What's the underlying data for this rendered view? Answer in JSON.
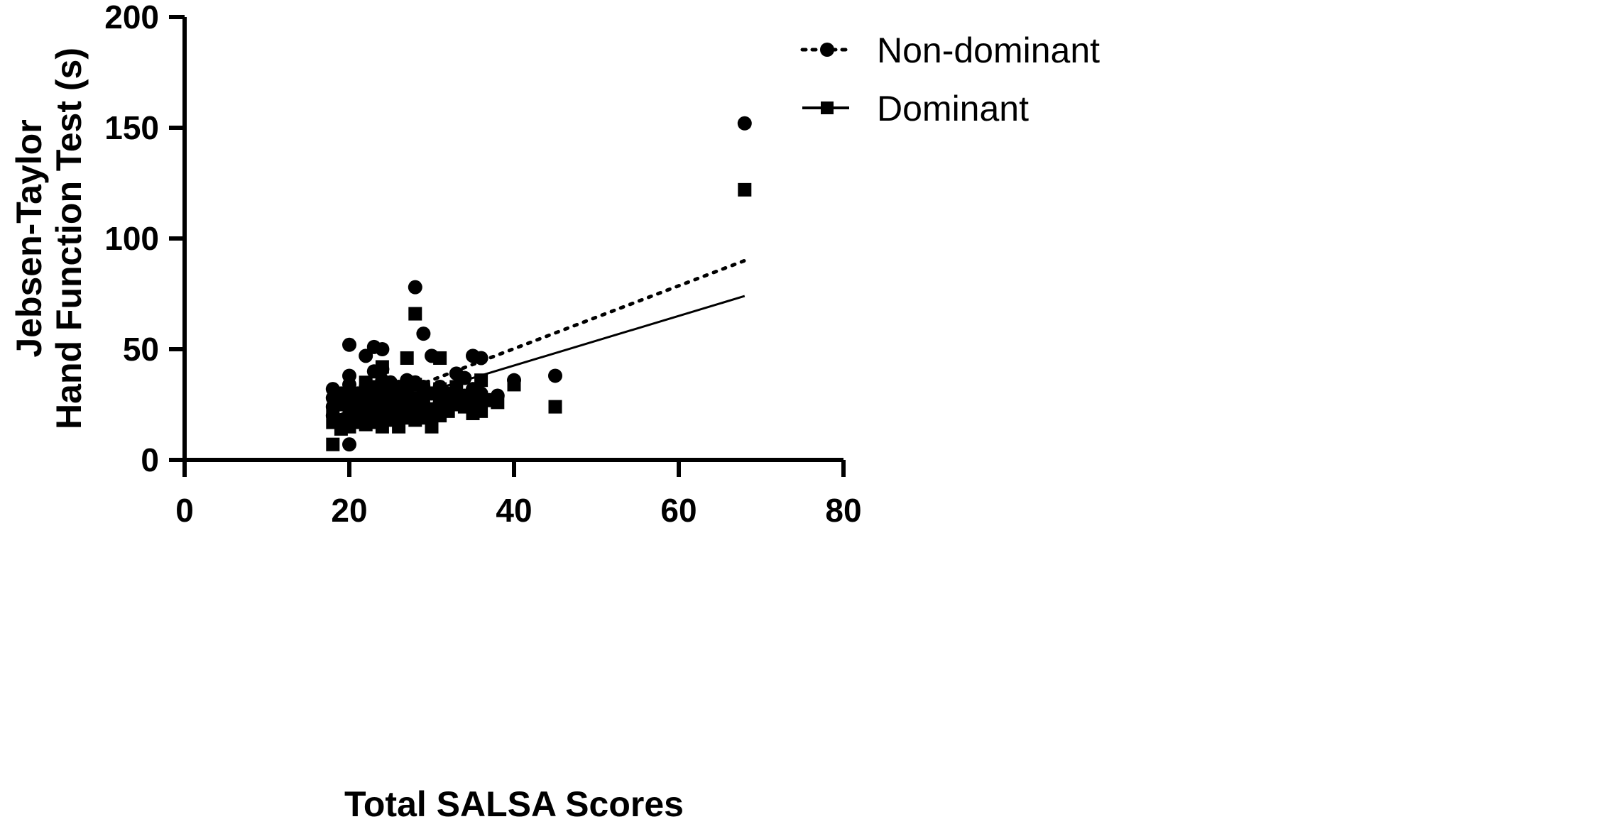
{
  "chart_data": {
    "type": "scatter",
    "xlabel": "Total SALSA Scores",
    "ylabel_lines": [
      "Jebsen-Taylor",
      "Hand Function Test (s)"
    ],
    "xlim": [
      0,
      80
    ],
    "ylim": [
      0,
      200
    ],
    "x_ticks": [
      "0",
      "20",
      "40",
      "60",
      "80"
    ],
    "y_ticks": [
      "0",
      "50",
      "100",
      "150",
      "200"
    ],
    "grid": false,
    "legend_position": "top-right",
    "series": [
      {
        "name": "Non-dominant",
        "marker": "circle",
        "trend_line": "dotted",
        "trend": [
          [
            18,
            19
          ],
          [
            68,
            90
          ]
        ],
        "points": [
          [
            18,
            20
          ],
          [
            18,
            24
          ],
          [
            18,
            28
          ],
          [
            18,
            32
          ],
          [
            19,
            18
          ],
          [
            19,
            26
          ],
          [
            19,
            30
          ],
          [
            20,
            52
          ],
          [
            20,
            38
          ],
          [
            20,
            34
          ],
          [
            20,
            29
          ],
          [
            20,
            23
          ],
          [
            20,
            16
          ],
          [
            20,
            7
          ],
          [
            21,
            30
          ],
          [
            21,
            22
          ],
          [
            22,
            47
          ],
          [
            22,
            33
          ],
          [
            22,
            27
          ],
          [
            22,
            20
          ],
          [
            23,
            51
          ],
          [
            23,
            40
          ],
          [
            23,
            31
          ],
          [
            23,
            24
          ],
          [
            24,
            50
          ],
          [
            24,
            41
          ],
          [
            24,
            36
          ],
          [
            24,
            28
          ],
          [
            24,
            22
          ],
          [
            25,
            35
          ],
          [
            25,
            29
          ],
          [
            25,
            19
          ],
          [
            26,
            33
          ],
          [
            26,
            25
          ],
          [
            26,
            18
          ],
          [
            27,
            36
          ],
          [
            27,
            30
          ],
          [
            27,
            22
          ],
          [
            28,
            78
          ],
          [
            28,
            35
          ],
          [
            28,
            27
          ],
          [
            28,
            20
          ],
          [
            29,
            57
          ],
          [
            29,
            33
          ],
          [
            29,
            24
          ],
          [
            30,
            47
          ],
          [
            30,
            30
          ],
          [
            30,
            21
          ],
          [
            31,
            33
          ],
          [
            31,
            26
          ],
          [
            32,
            30
          ],
          [
            33,
            39
          ],
          [
            33,
            27
          ],
          [
            34,
            37
          ],
          [
            34,
            29
          ],
          [
            35,
            47
          ],
          [
            35,
            32
          ],
          [
            35,
            24
          ],
          [
            36,
            46
          ],
          [
            36,
            30
          ],
          [
            37,
            27
          ],
          [
            38,
            29
          ],
          [
            40,
            36
          ],
          [
            45,
            38
          ],
          [
            68,
            152
          ]
        ]
      },
      {
        "name": "Dominant",
        "marker": "square",
        "trend_line": "solid",
        "trend": [
          [
            18,
            18
          ],
          [
            68,
            74
          ]
        ],
        "points": [
          [
            18,
            7
          ],
          [
            18,
            17
          ],
          [
            18,
            22
          ],
          [
            19,
            25
          ],
          [
            19,
            14
          ],
          [
            20,
            30
          ],
          [
            20,
            24
          ],
          [
            20,
            20
          ],
          [
            20,
            15
          ],
          [
            21,
            28
          ],
          [
            21,
            22
          ],
          [
            21,
            17
          ],
          [
            22,
            35
          ],
          [
            22,
            26
          ],
          [
            22,
            19
          ],
          [
            22,
            16
          ],
          [
            23,
            33
          ],
          [
            23,
            27
          ],
          [
            23,
            21
          ],
          [
            23,
            17
          ],
          [
            24,
            42
          ],
          [
            24,
            34
          ],
          [
            24,
            26
          ],
          [
            24,
            20
          ],
          [
            24,
            15
          ],
          [
            25,
            32
          ],
          [
            25,
            24
          ],
          [
            25,
            18
          ],
          [
            26,
            29
          ],
          [
            26,
            22
          ],
          [
            26,
            15
          ],
          [
            27,
            46
          ],
          [
            27,
            33
          ],
          [
            27,
            25
          ],
          [
            27,
            19
          ],
          [
            28,
            66
          ],
          [
            28,
            34
          ],
          [
            28,
            28
          ],
          [
            28,
            22
          ],
          [
            28,
            18
          ],
          [
            29,
            32
          ],
          [
            29,
            26
          ],
          [
            29,
            19
          ],
          [
            30,
            30
          ],
          [
            30,
            23
          ],
          [
            30,
            15
          ],
          [
            31,
            46
          ],
          [
            31,
            32
          ],
          [
            31,
            26
          ],
          [
            31,
            20
          ],
          [
            32,
            28
          ],
          [
            32,
            22
          ],
          [
            33,
            33
          ],
          [
            33,
            25
          ],
          [
            34,
            27
          ],
          [
            34,
            24
          ],
          [
            35,
            29
          ],
          [
            35,
            21
          ],
          [
            36,
            36
          ],
          [
            36,
            28
          ],
          [
            36,
            22
          ],
          [
            38,
            26
          ],
          [
            40,
            34
          ],
          [
            45,
            24
          ],
          [
            68,
            122
          ]
        ]
      }
    ]
  }
}
